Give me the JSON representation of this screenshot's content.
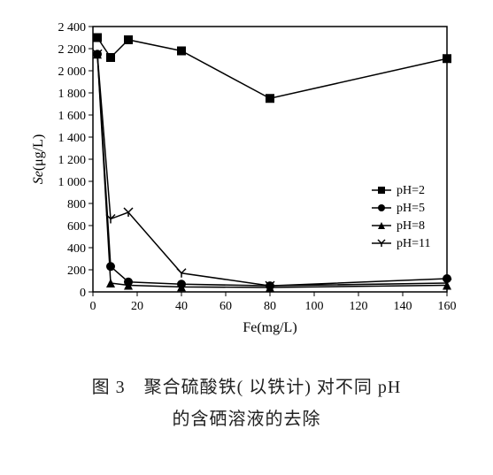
{
  "chart": {
    "type": "line",
    "x_axis": {
      "label": "Fe(mg/L)",
      "min": 0,
      "max": 160,
      "ticks": [
        0,
        20,
        40,
        60,
        80,
        100,
        120,
        140,
        160
      ],
      "label_fontsize": 16,
      "tick_fontsize": 14
    },
    "y_axis": {
      "label": "Se(μg/L)",
      "min": 0,
      "max": 2400,
      "ticks": [
        0,
        200,
        400,
        600,
        800,
        1000,
        1200,
        1400,
        1600,
        1800,
        2000,
        2200,
        2400
      ],
      "label_fontsize": 16,
      "tick_fontsize": 14
    },
    "plot": {
      "background_color": "#ffffff",
      "axis_color": "#000000",
      "line_color": "#000000",
      "line_width": 1.5,
      "marker_size": 5
    },
    "series": [
      {
        "name": "pH=2",
        "marker": "square",
        "data": [
          {
            "x": 2,
            "y": 2300
          },
          {
            "x": 8,
            "y": 2120
          },
          {
            "x": 16,
            "y": 2280
          },
          {
            "x": 40,
            "y": 2180
          },
          {
            "x": 80,
            "y": 1750
          },
          {
            "x": 160,
            "y": 2110
          }
        ]
      },
      {
        "name": "pH=5",
        "marker": "circle",
        "data": [
          {
            "x": 2,
            "y": 2150
          },
          {
            "x": 8,
            "y": 230
          },
          {
            "x": 16,
            "y": 90
          },
          {
            "x": 40,
            "y": 70
          },
          {
            "x": 80,
            "y": 55
          },
          {
            "x": 160,
            "y": 120
          }
        ]
      },
      {
        "name": "pH=8",
        "marker": "triangle",
        "data": [
          {
            "x": 2,
            "y": 2150
          },
          {
            "x": 8,
            "y": 80
          },
          {
            "x": 16,
            "y": 60
          },
          {
            "x": 40,
            "y": 45
          },
          {
            "x": 80,
            "y": 40
          },
          {
            "x": 160,
            "y": 60
          }
        ]
      },
      {
        "name": "pH=11",
        "marker": "tridown",
        "data": [
          {
            "x": 2,
            "y": 2150
          },
          {
            "x": 8,
            "y": 660
          },
          {
            "x": 16,
            "y": 720
          },
          {
            "x": 40,
            "y": 170
          },
          {
            "x": 80,
            "y": 55
          },
          {
            "x": 160,
            "y": 80
          }
        ]
      }
    ],
    "legend": {
      "position": "right",
      "items": [
        "pH=2",
        "pH=5",
        "pH=8",
        "pH=11"
      ],
      "fontsize": 14
    }
  },
  "caption": {
    "line1": "图 3　聚合硫酸铁( 以铁计) 对不同 pH",
    "line2": "的含硒溶液的去除",
    "font_family": "SimSun",
    "fontsize": 20
  }
}
